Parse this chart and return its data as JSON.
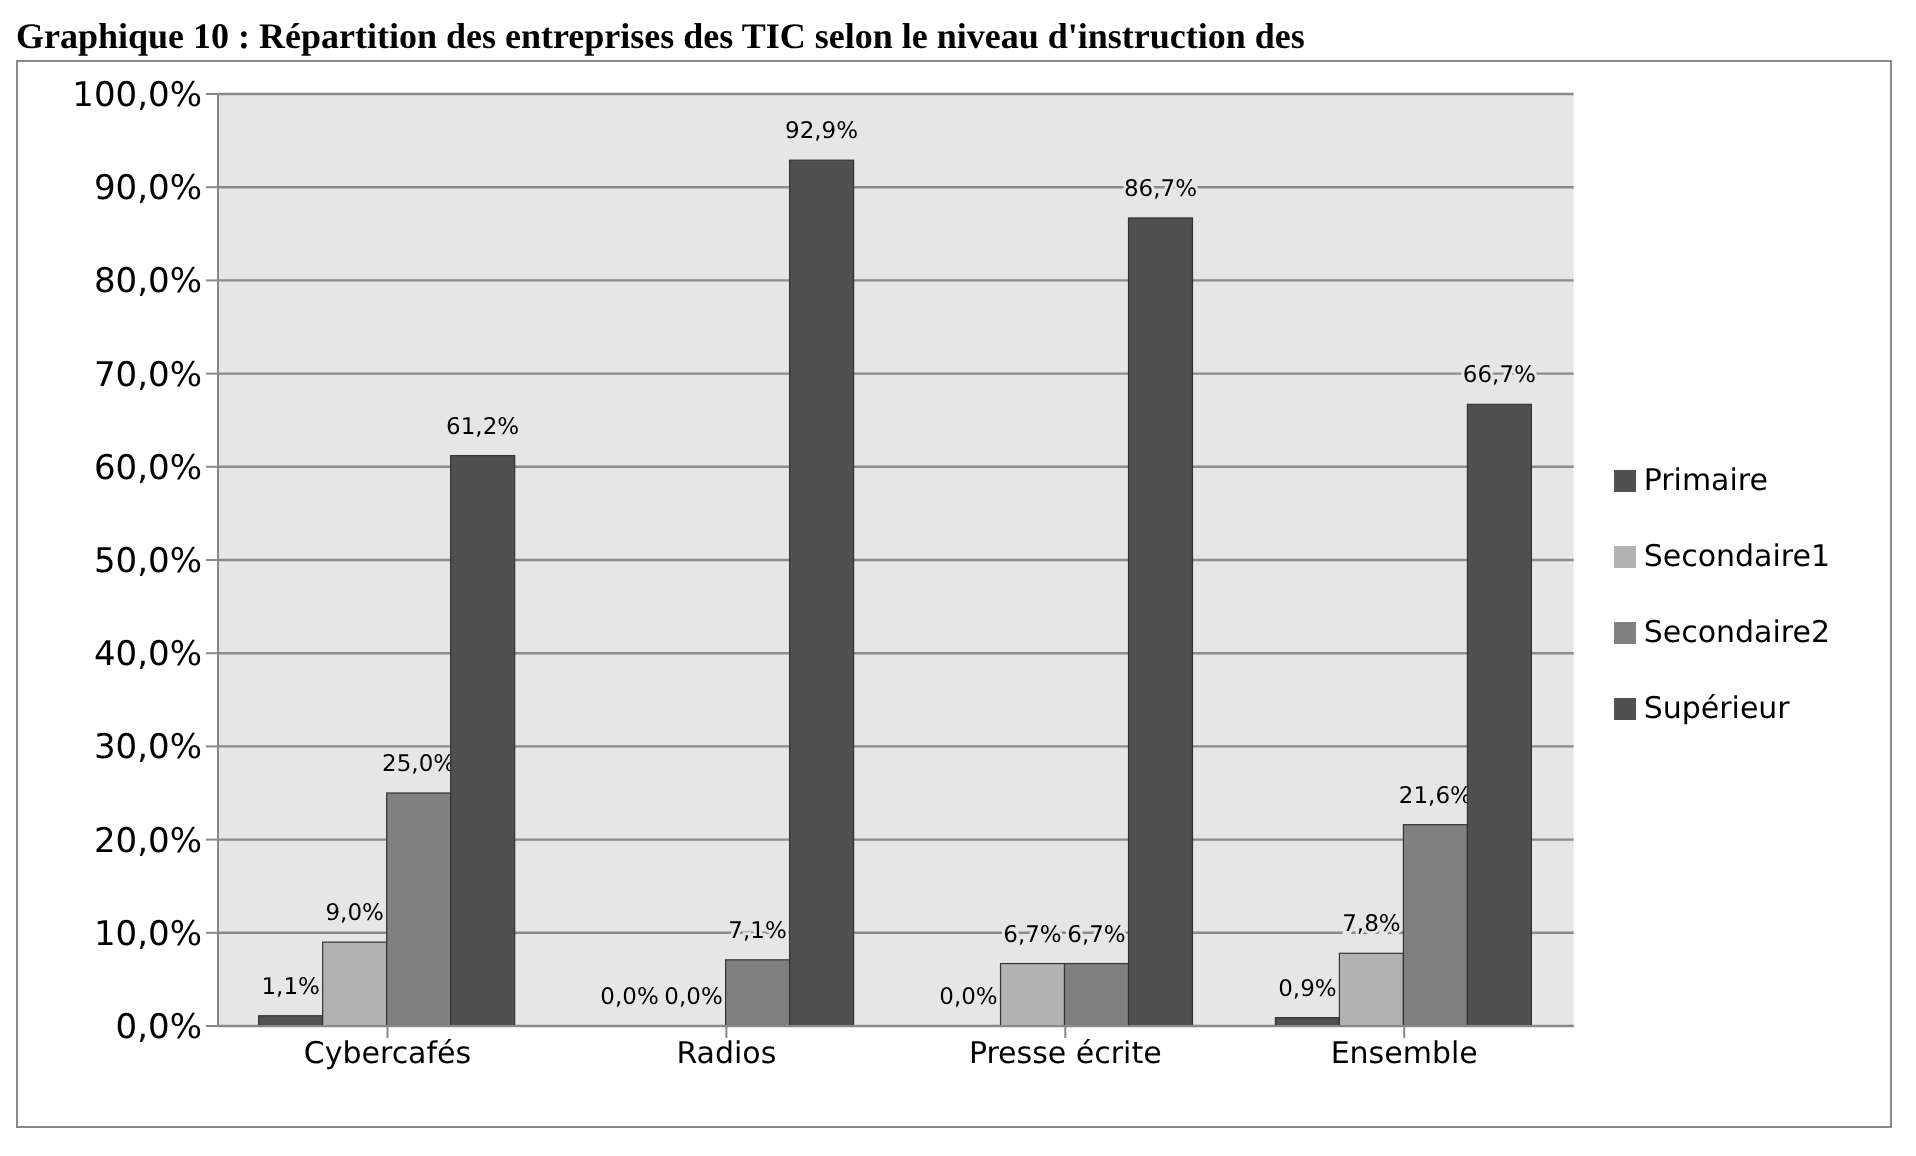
{
  "chart_data": {
    "type": "bar",
    "title": "Graphique 10 : Répartition des entreprises des TIC selon le niveau d'instruction des",
    "categories": [
      "Cybercafés",
      "Radios",
      "Presse écrite",
      "Ensemble"
    ],
    "series": [
      {
        "name": "Primaire",
        "color": "#505050",
        "values": [
          1.1,
          0.0,
          0.0,
          0.9
        ],
        "value_labels": [
          "1,1%",
          "0,0%",
          "0,0%",
          "0,9%"
        ]
      },
      {
        "name": "Secondaire1",
        "color": "#b2b2b2",
        "values": [
          9.0,
          0.0,
          6.7,
          7.8
        ],
        "value_labels": [
          "9,0%",
          "0,0%",
          "6,7%",
          "7,8%"
        ]
      },
      {
        "name": "Secondaire2",
        "color": "#808080",
        "values": [
          25.0,
          7.1,
          6.7,
          21.6
        ],
        "value_labels": [
          "25,0%",
          "7,1%",
          "6,7%",
          "21,6%"
        ]
      },
      {
        "name": "Supérieur",
        "color": "#505050",
        "values": [
          61.2,
          92.9,
          86.7,
          66.7
        ],
        "value_labels": [
          "61,2%",
          "92,9%",
          "86,7%",
          "66,7%"
        ]
      }
    ],
    "ylim": [
      0,
      100
    ],
    "yticks": [
      {
        "value": 0,
        "label": "0,0%"
      },
      {
        "value": 10,
        "label": "10,0%"
      },
      {
        "value": 20,
        "label": "20,0%"
      },
      {
        "value": 30,
        "label": "30,0%"
      },
      {
        "value": 40,
        "label": "40,0%"
      },
      {
        "value": 50,
        "label": "50,0%"
      },
      {
        "value": 60,
        "label": "60,0%"
      },
      {
        "value": 70,
        "label": "70,0%"
      },
      {
        "value": 80,
        "label": "80,0%"
      },
      {
        "value": 90,
        "label": "90,0%"
      },
      {
        "value": 100,
        "label": "100,0%"
      }
    ],
    "grid": "y",
    "legend": "right"
  }
}
